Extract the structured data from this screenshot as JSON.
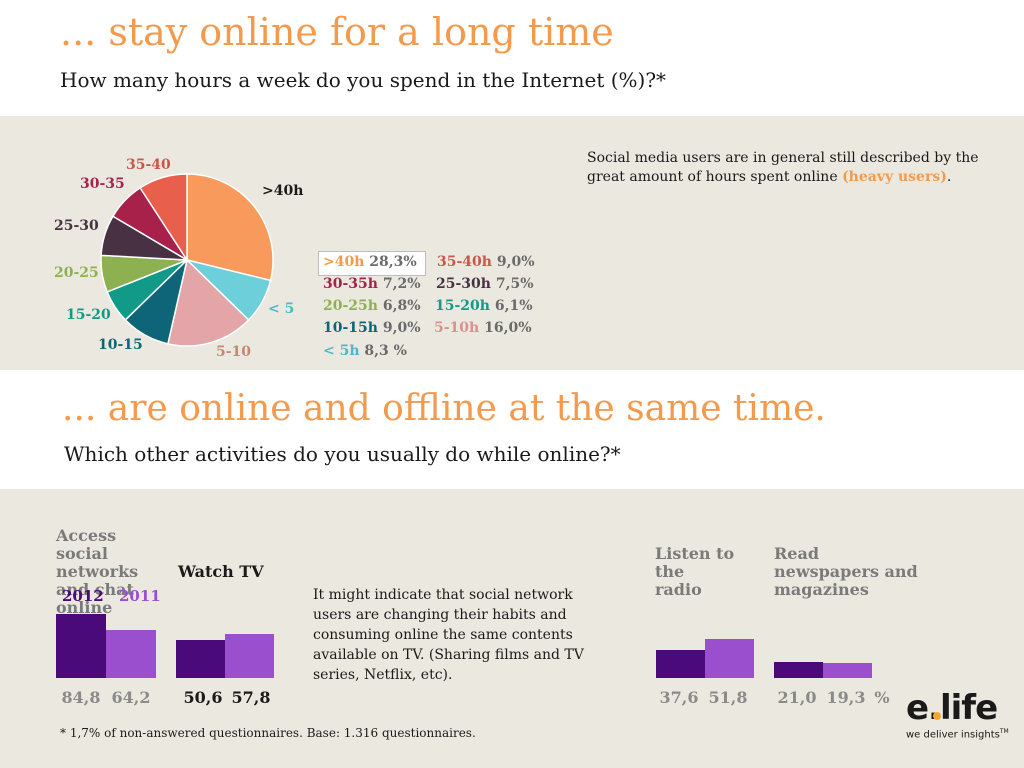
{
  "section1": {
    "title": "... stay online for a long time",
    "subtitle": "How many hours a week do you spend in the Internet (%)?*"
  },
  "note1": {
    "text": "Social media users are  in general still described by the great amount  of hours spent online ",
    "highlight": "(heavy users)",
    "end": "."
  },
  "chart_data": [
    {
      "type": "pie",
      "categories": [
        ">40h",
        "< 5",
        "5-10",
        "10-15",
        "15-20",
        "20-25",
        "25-30",
        "30-35",
        "35-40"
      ],
      "values": [
        28.3,
        8.3,
        16.0,
        9.0,
        6.1,
        6.8,
        7.5,
        7.2,
        9.0
      ],
      "colors": [
        "#f79a5c",
        "#6ccfd9",
        "#e3a5a8",
        "#0d6577",
        "#119a88",
        "#8db050",
        "#473142",
        "#a8214b",
        "#e85f4b"
      ],
      "pie_labels": [
        ">40h",
        "< 5",
        "5-10",
        "10-15",
        "15-20",
        "20-25",
        "25-30",
        "30-35",
        "35-40"
      ],
      "legend": [
        {
          "label": ">40h",
          "pct": "28,3%",
          "color": "#f39a4c",
          "boxed": true
        },
        {
          "label": "35-40h",
          "pct": "9,0%",
          "color": "#c8574a"
        },
        {
          "label": "30-35h",
          "pct": "7,2%",
          "color": "#a8214b"
        },
        {
          "label": "25-30h",
          "pct": "7,5%",
          "color": "#473142"
        },
        {
          "label": "20-25h",
          "pct": "6,8%",
          "color": "#8db050"
        },
        {
          "label": "15-20h",
          "pct": "6,1%",
          "color": "#119a88"
        },
        {
          "label": "10-15h",
          "pct": "9,0%",
          "color": "#0d6577"
        },
        {
          "label": "5-10h",
          "pct": "16,0%",
          "color": "#d9918f"
        },
        {
          "label": "< 5h",
          "pct": "8,3 %",
          "color": "#4ab9c8"
        }
      ]
    },
    {
      "type": "bar",
      "categories": [
        "Access  social networks and chat online",
        "Watch TV",
        "Listen to the radio",
        "Read newspapers and magazines"
      ],
      "series": [
        {
          "name": "2012",
          "values": [
            84.8,
            50.6,
            37.6,
            21.0
          ],
          "color": "#4a0a7a"
        },
        {
          "name": "2011",
          "values": [
            64.2,
            57.8,
            51.8,
            19.3
          ],
          "color": "#9a4fcf"
        }
      ],
      "value_labels": [
        [
          "84,8",
          "64,2"
        ],
        [
          "50,6",
          "57,8"
        ],
        [
          "37,6",
          "51,8"
        ],
        [
          "21,0",
          "19,3"
        ]
      ],
      "unit": "%",
      "ylim": [
        0,
        100
      ]
    }
  ],
  "section2": {
    "title": "... are online and offline at the same time.",
    "subtitle": "Which other activities do you usually do while online?*"
  },
  "groups": {
    "g1_title": "Access  social networks and chat online",
    "g2_title": "Watch TV",
    "g3_title": "Listen to the radio",
    "g4_title": "Read newspapers and magazines",
    "year_2012": "2012",
    "year_2011": "2011",
    "unit": "%"
  },
  "note2": "It might indicate  that social network users are changing their habits and consuming  online the same contents available on TV.  (Sharing films and TV series, Netflix, etc).",
  "footnote": "* 1,7%  of non-answered questionnaires. Base: 1.316 questionnaires.",
  "logo": {
    "brand": "e.life",
    "tagline": "we deliver insights",
    "tm": "TM"
  }
}
